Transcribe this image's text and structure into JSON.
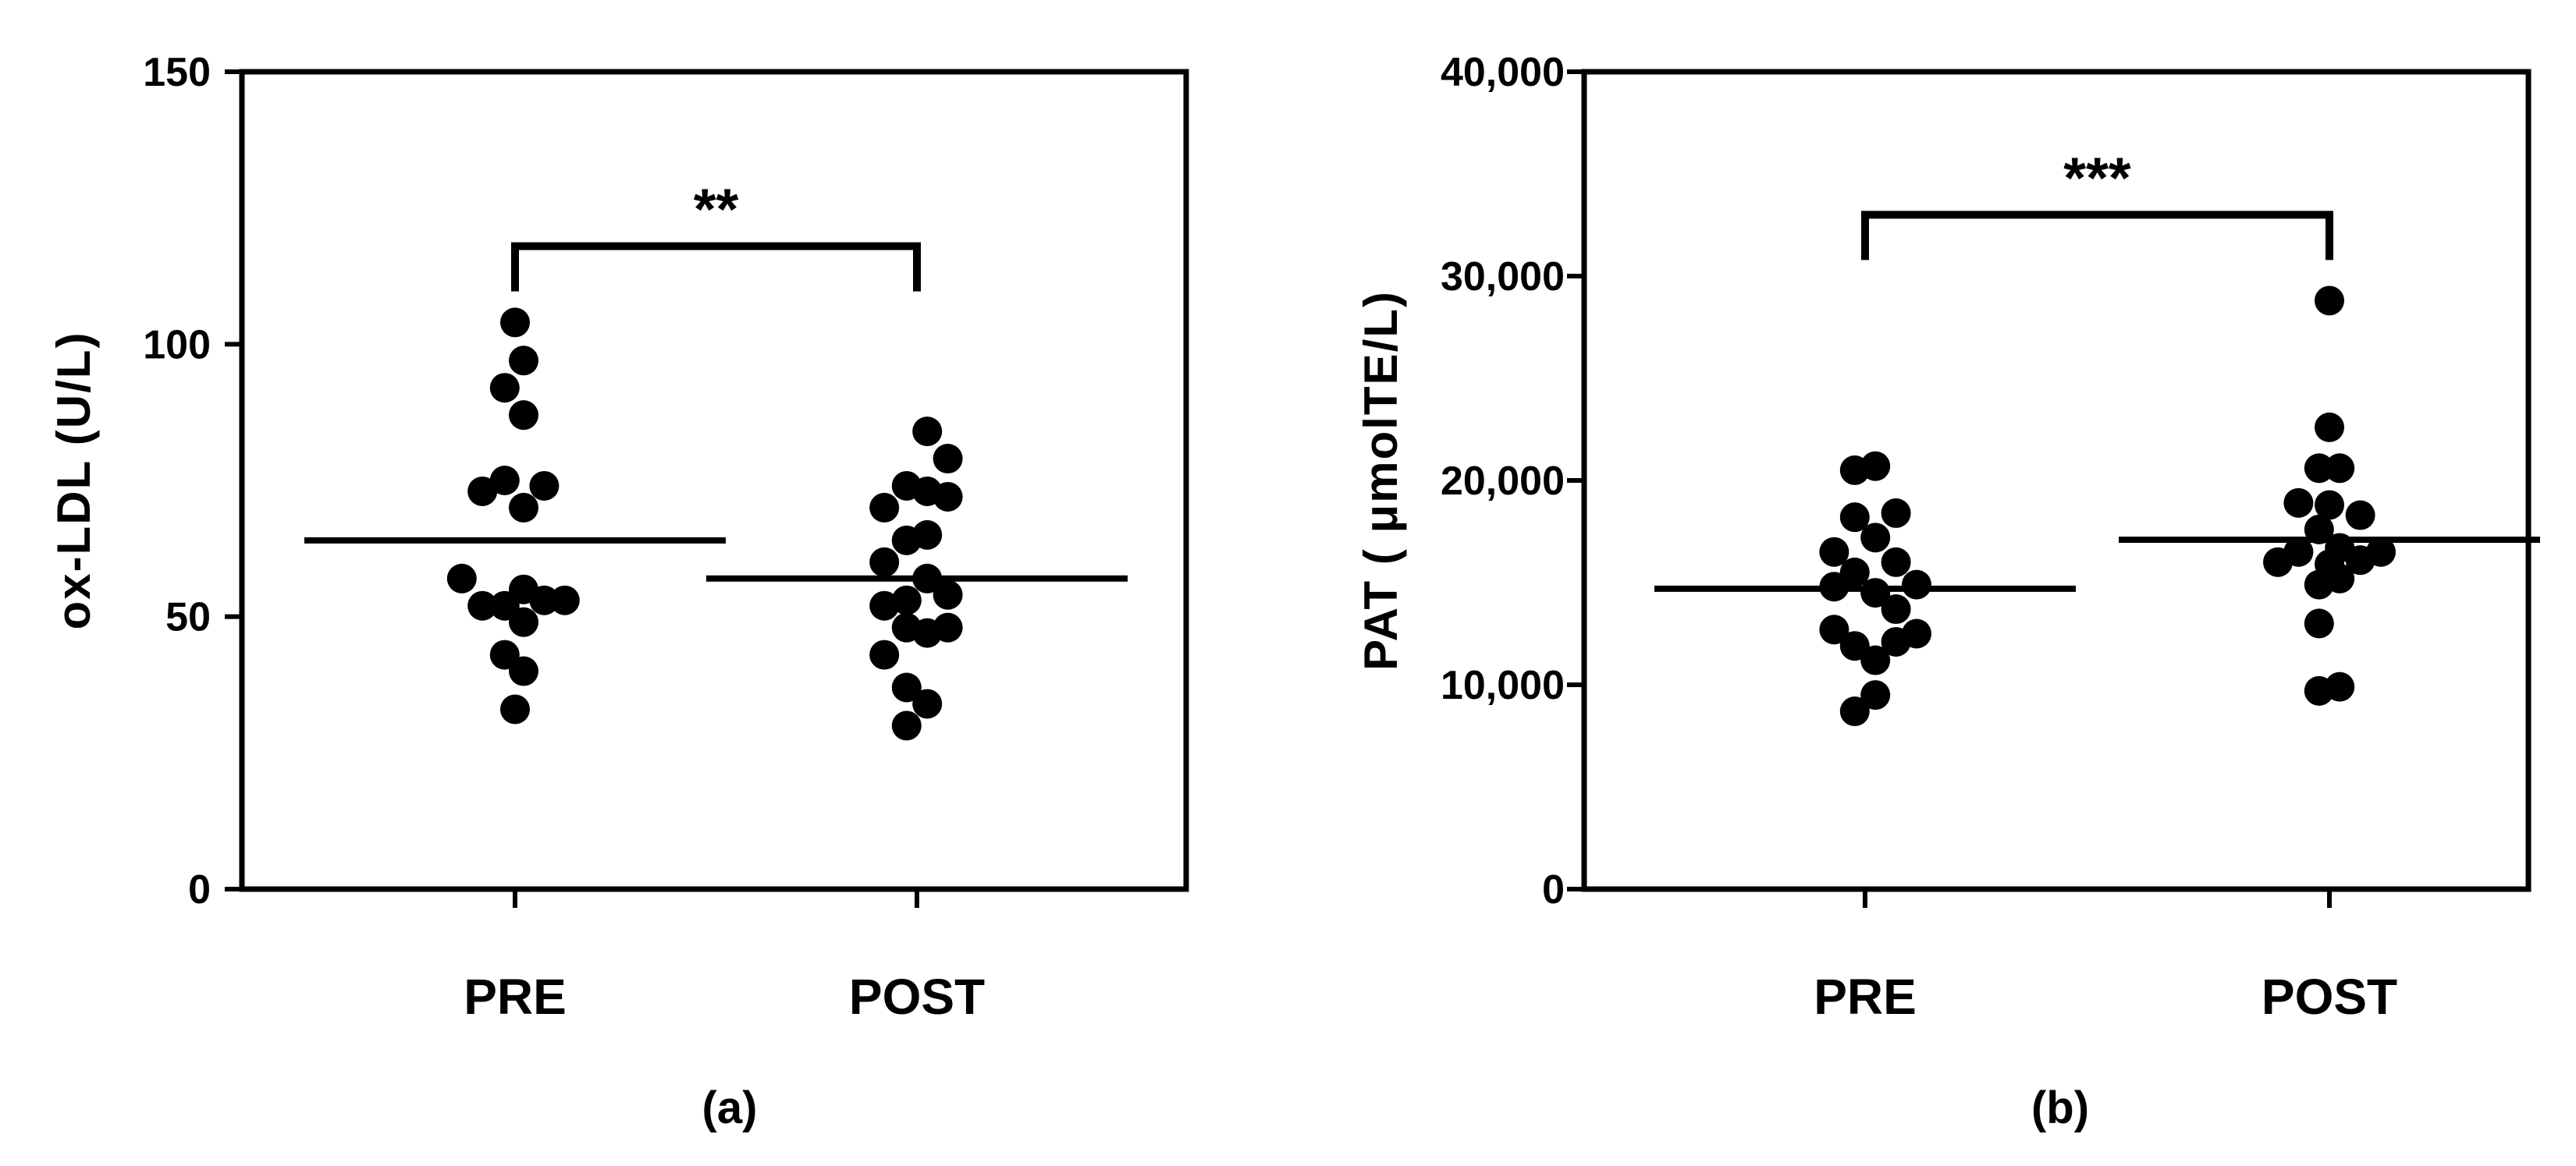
{
  "chart_data": [
    {
      "type": "scatter",
      "panel_label": "(a)",
      "ylabel": "ox-LDL (U/L)",
      "ylim": [
        0,
        150
      ],
      "yticks": [
        0,
        50,
        100,
        150
      ],
      "ytick_labels": [
        "0",
        "50",
        "100",
        "150"
      ],
      "categories": [
        "PRE",
        "POST"
      ],
      "grid": false,
      "groups": [
        {
          "category": "PRE",
          "mean": 64,
          "points": [
            {
              "dx": 0.0,
              "y": 104
            },
            {
              "dx": 0.1,
              "y": 97
            },
            {
              "dx": -0.12,
              "y": 92
            },
            {
              "dx": 0.1,
              "y": 87
            },
            {
              "dx": -0.38,
              "y": 73
            },
            {
              "dx": -0.12,
              "y": 75
            },
            {
              "dx": 0.1,
              "y": 70
            },
            {
              "dx": 0.34,
              "y": 74
            },
            {
              "dx": -0.62,
              "y": 57
            },
            {
              "dx": -0.38,
              "y": 52
            },
            {
              "dx": -0.12,
              "y": 52
            },
            {
              "dx": 0.1,
              "y": 55
            },
            {
              "dx": 0.34,
              "y": 53
            },
            {
              "dx": 0.58,
              "y": 53
            },
            {
              "dx": -0.12,
              "y": 43
            },
            {
              "dx": 0.1,
              "y": 49
            },
            {
              "dx": 0.1,
              "y": 40
            },
            {
              "dx": 0.0,
              "y": 33
            }
          ]
        },
        {
          "category": "POST",
          "mean": 57,
          "points": [
            {
              "dx": 0.12,
              "y": 84
            },
            {
              "dx": 0.36,
              "y": 79
            },
            {
              "dx": -0.12,
              "y": 74
            },
            {
              "dx": 0.12,
              "y": 73
            },
            {
              "dx": 0.36,
              "y": 72
            },
            {
              "dx": -0.38,
              "y": 70
            },
            {
              "dx": -0.12,
              "y": 64
            },
            {
              "dx": 0.12,
              "y": 65
            },
            {
              "dx": -0.38,
              "y": 60
            },
            {
              "dx": 0.12,
              "y": 57
            },
            {
              "dx": 0.36,
              "y": 54
            },
            {
              "dx": -0.38,
              "y": 52
            },
            {
              "dx": -0.12,
              "y": 53
            },
            {
              "dx": -0.38,
              "y": 43
            },
            {
              "dx": -0.12,
              "y": 48
            },
            {
              "dx": 0.12,
              "y": 47
            },
            {
              "dx": 0.36,
              "y": 48
            },
            {
              "dx": -0.12,
              "y": 37
            },
            {
              "dx": 0.12,
              "y": 34
            },
            {
              "dx": -0.12,
              "y": 30
            }
          ]
        }
      ],
      "significance": {
        "text": "**",
        "between": [
          "PRE",
          "POST"
        ],
        "bracket_y": 118
      }
    },
    {
      "type": "scatter",
      "panel_label": "(b)",
      "ylabel": "PAT ( μmolTE/L)",
      "ylim": [
        0,
        40000
      ],
      "yticks": [
        0,
        10000,
        20000,
        30000,
        40000
      ],
      "ytick_labels": [
        "0",
        "10,000",
        "20,000",
        "30,000",
        "40,000"
      ],
      "categories": [
        "PRE",
        "POST"
      ],
      "grid": false,
      "groups": [
        {
          "category": "PRE",
          "mean": 14700,
          "points": [
            {
              "dx": -0.12,
              "y": 20500
            },
            {
              "dx": 0.12,
              "y": 20700
            },
            {
              "dx": -0.12,
              "y": 18200
            },
            {
              "dx": 0.36,
              "y": 18400
            },
            {
              "dx": 0.12,
              "y": 17200
            },
            {
              "dx": -0.36,
              "y": 16500
            },
            {
              "dx": -0.12,
              "y": 15500
            },
            {
              "dx": 0.36,
              "y": 16000
            },
            {
              "dx": -0.36,
              "y": 14800
            },
            {
              "dx": 0.12,
              "y": 14500
            },
            {
              "dx": 0.6,
              "y": 14900
            },
            {
              "dx": -0.36,
              "y": 12700
            },
            {
              "dx": 0.36,
              "y": 13700
            },
            {
              "dx": 0.6,
              "y": 12500
            },
            {
              "dx": -0.12,
              "y": 11900
            },
            {
              "dx": 0.12,
              "y": 11200
            },
            {
              "dx": 0.36,
              "y": 12100
            },
            {
              "dx": -0.12,
              "y": 8700
            },
            {
              "dx": 0.12,
              "y": 9500
            }
          ]
        },
        {
          "category": "POST",
          "mean": 17100,
          "points": [
            {
              "dx": 0.0,
              "y": 28800
            },
            {
              "dx": 0.0,
              "y": 22600
            },
            {
              "dx": -0.12,
              "y": 20600
            },
            {
              "dx": 0.12,
              "y": 20600
            },
            {
              "dx": -0.36,
              "y": 18900
            },
            {
              "dx": 0.0,
              "y": 18800
            },
            {
              "dx": 0.36,
              "y": 18300
            },
            {
              "dx": -0.6,
              "y": 16000
            },
            {
              "dx": -0.36,
              "y": 16500
            },
            {
              "dx": -0.12,
              "y": 17600
            },
            {
              "dx": 0.12,
              "y": 16700
            },
            {
              "dx": 0.36,
              "y": 16100
            },
            {
              "dx": 0.6,
              "y": 16500
            },
            {
              "dx": -0.12,
              "y": 14900
            },
            {
              "dx": 0.12,
              "y": 15200
            },
            {
              "dx": -0.12,
              "y": 13000
            },
            {
              "dx": 0.0,
              "y": 15900
            },
            {
              "dx": -0.12,
              "y": 9700
            },
            {
              "dx": 0.12,
              "y": 9900
            }
          ]
        }
      ],
      "significance": {
        "text": "***",
        "between": [
          "PRE",
          "POST"
        ],
        "bracket_y": 33000
      }
    }
  ]
}
